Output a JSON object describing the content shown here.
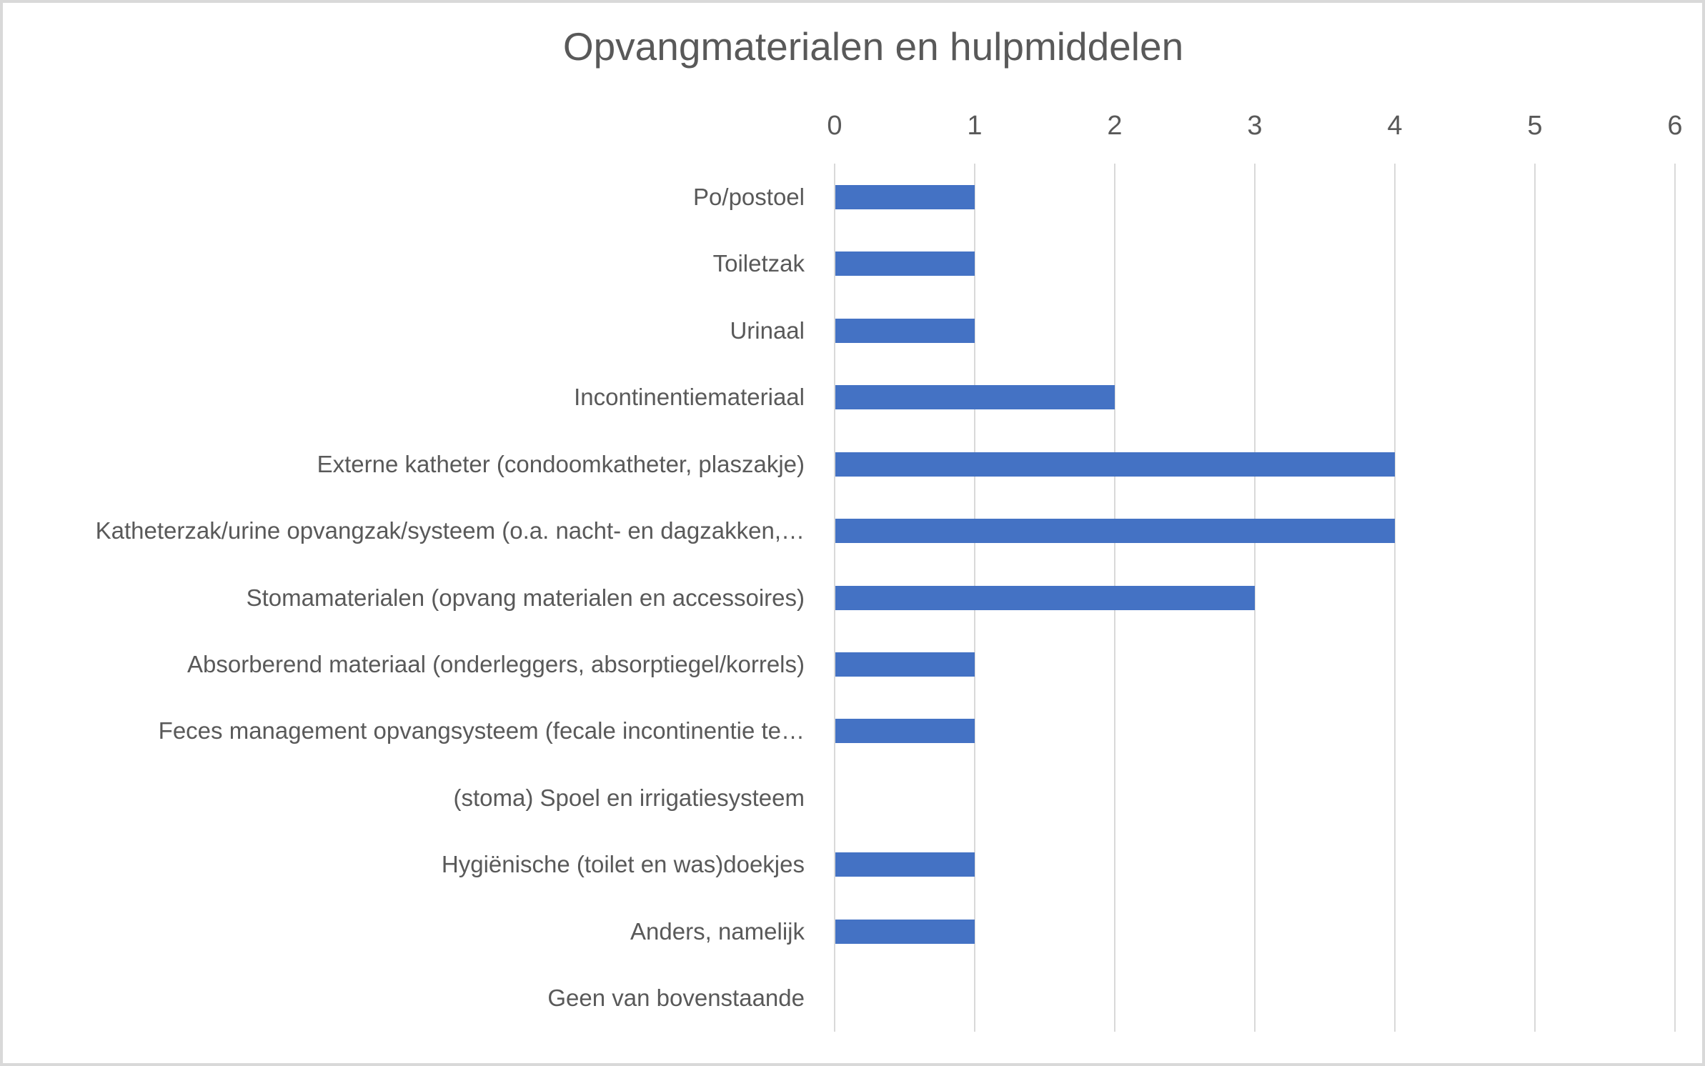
{
  "chart_data": {
    "type": "bar",
    "orientation": "horizontal",
    "title": "Opvangmaterialen en hulpmiddelen",
    "categories": [
      "Po/postoel",
      "Toiletzak",
      "Urinaal",
      "Incontinentiemateriaal",
      "Externe katheter (condoomkatheter, plaszakje)",
      "Katheterzak/urine opvangzak/systeem (o.a. nacht- en dagzakken,…",
      "Stomamaterialen (opvang materialen en accessoires)",
      "Absorberend materiaal (onderleggers, absorptiegel/korrels)",
      "Feces management opvangsysteem (fecale incontinentie te…",
      "(stoma) Spoel en irrigatiesysteem",
      "Hygiënische (toilet en was)doekjes",
      "Anders, namelijk",
      "Geen van bovenstaande"
    ],
    "values": [
      1,
      1,
      1,
      2,
      4,
      4,
      3,
      1,
      1,
      0,
      1,
      1,
      0
    ],
    "xlabel": "",
    "ylabel": "",
    "xlim": [
      0,
      6
    ],
    "xticks": [
      0,
      1,
      2,
      3,
      4,
      5,
      6
    ],
    "tick_position": "top",
    "grid": true,
    "legend": false,
    "bar_color": "#4472C4",
    "gridline_color": "#D9D9D9",
    "text_color": "#595959",
    "border_color": "#D9D9D9",
    "background_color": "#FFFFFF"
  }
}
